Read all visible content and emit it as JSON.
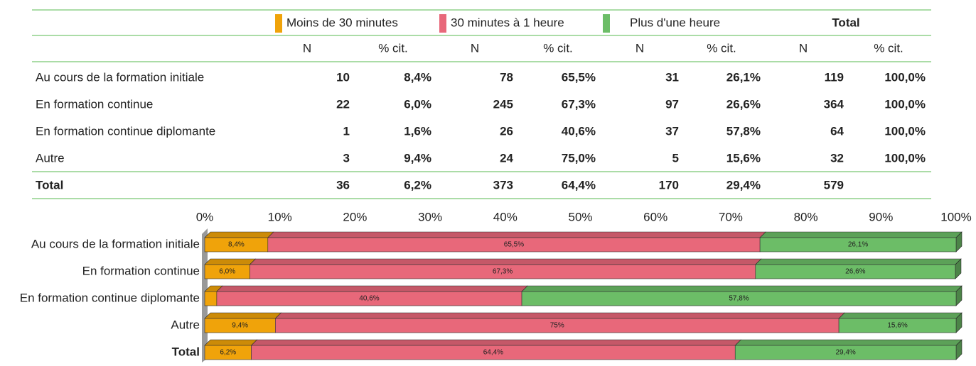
{
  "table": {
    "total_header": "Total",
    "subheaders": [
      "N",
      "% cit.",
      "N",
      "% cit.",
      "N",
      "% cit.",
      "N",
      "% cit."
    ],
    "rows": [
      [
        "Au cours de la formation initiale",
        "10",
        "8,4%",
        "78",
        "65,5%",
        "31",
        "26,1%",
        "119",
        "100,0%"
      ],
      [
        "En formation continue",
        "22",
        "6,0%",
        "245",
        "67,3%",
        "97",
        "26,6%",
        "364",
        "100,0%"
      ],
      [
        "En formation continue diplomante",
        "1",
        "1,6%",
        "26",
        "40,6%",
        "37",
        "57,8%",
        "64",
        "100,0%"
      ],
      [
        "Autre",
        "3",
        "9,4%",
        "24",
        "75,0%",
        "5",
        "15,6%",
        "32",
        "100,0%"
      ],
      [
        "Total",
        "36",
        "6,2%",
        "373",
        "64,4%",
        "170",
        "29,4%",
        "579"
      ]
    ]
  },
  "chart_data": {
    "type": "bar",
    "orientation": "horizontal",
    "stacked": true,
    "categories": [
      "Au cours de la formation initiale",
      "En formation continue",
      "En formation continue diplomante",
      "Autre",
      "Total"
    ],
    "series": [
      {
        "name": "Moins de 30 minutes",
        "color": "#f0a30a",
        "values": [
          8.4,
          6.0,
          1.6,
          9.4,
          6.2
        ],
        "value_labels": [
          "8,4%",
          "6,0%",
          null,
          "9,4%",
          "6,2%"
        ]
      },
      {
        "name": "30 minutes à 1 heure",
        "color": "#e8687a",
        "values": [
          65.5,
          67.3,
          40.6,
          75,
          64.4
        ],
        "value_labels": [
          "65,5%",
          "67,3%",
          "40,6%",
          "75%",
          "64,4%"
        ]
      },
      {
        "name": "Plus d'une heure",
        "color": "#6cbd67",
        "values": [
          26.1,
          26.6,
          57.8,
          15.6,
          29.4
        ],
        "value_labels": [
          "26,1%",
          "26,6%",
          "57,8%",
          "15,6%",
          "29,4%"
        ]
      }
    ],
    "xlim": [
      0,
      100
    ],
    "xticks": [
      {
        "value": 0,
        "label": "0%"
      },
      {
        "value": 10,
        "label": "10%"
      },
      {
        "value": 20,
        "label": "20%"
      },
      {
        "value": 30,
        "label": "30%"
      },
      {
        "value": 40,
        "label": "40%"
      },
      {
        "value": 50,
        "label": "50%"
      },
      {
        "value": 60,
        "label": "60%"
      },
      {
        "value": 70,
        "label": "70%"
      },
      {
        "value": 80,
        "label": "80%"
      },
      {
        "value": 90,
        "label": "90%"
      },
      {
        "value": 100,
        "label": "100%"
      }
    ]
  }
}
